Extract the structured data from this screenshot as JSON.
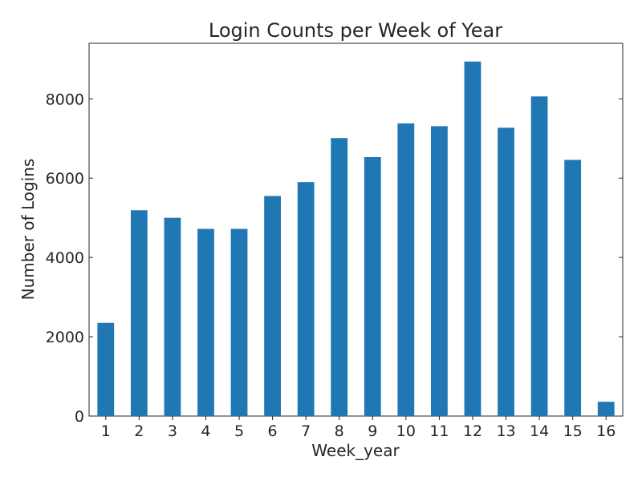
{
  "chart_data": {
    "type": "bar",
    "title": "Login Counts per Week of Year",
    "xlabel": "Week_year",
    "ylabel": "Number of Logins",
    "categories": [
      "1",
      "2",
      "3",
      "4",
      "5",
      "6",
      "7",
      "8",
      "9",
      "10",
      "11",
      "12",
      "13",
      "14",
      "15",
      "16"
    ],
    "values": [
      2350,
      5190,
      5000,
      4720,
      4720,
      5550,
      5900,
      7010,
      6530,
      7380,
      7310,
      8940,
      7270,
      8060,
      6460,
      360
    ],
    "ylim": [
      0,
      9400
    ],
    "yticks": [
      0,
      2000,
      4000,
      6000,
      8000
    ],
    "ytick_labels": [
      "0",
      "2000",
      "4000",
      "6000",
      "8000"
    ],
    "bar_color": "#1f77b4",
    "grid": false,
    "legend": false
  }
}
